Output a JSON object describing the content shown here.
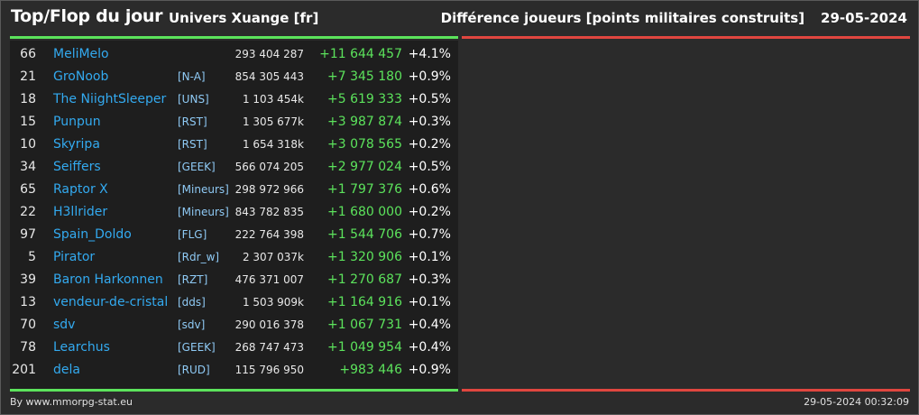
{
  "header": {
    "title": "Top/Flop du jour",
    "universe": "Univers Xuange [fr]",
    "category": "Différence joueurs [points militaires construits]",
    "date": "29-05-2024"
  },
  "rows": [
    {
      "rank": "66",
      "name": "MeliMelo",
      "ally": "",
      "points": "293 404 287",
      "diff": "+11 644 457",
      "pct": "+4.1%"
    },
    {
      "rank": "21",
      "name": "GroNoob",
      "ally": "[N-A]",
      "points": "854 305 443",
      "diff": "+7 345 180",
      "pct": "+0.9%"
    },
    {
      "rank": "18",
      "name": "The NiightSleeper",
      "ally": "[UNS]",
      "points": "1 103 454k",
      "diff": "+5 619 333",
      "pct": "+0.5%"
    },
    {
      "rank": "15",
      "name": "Punpun",
      "ally": "[RST]",
      "points": "1 305 677k",
      "diff": "+3 987 874",
      "pct": "+0.3%"
    },
    {
      "rank": "10",
      "name": "Skyripa",
      "ally": "[RST]",
      "points": "1 654 318k",
      "diff": "+3 078 565",
      "pct": "+0.2%"
    },
    {
      "rank": "34",
      "name": "Seiffers",
      "ally": "[GEEK]",
      "points": "566 074 205",
      "diff": "+2 977 024",
      "pct": "+0.5%"
    },
    {
      "rank": "65",
      "name": "Raptor X",
      "ally": "[Mineurs]",
      "points": "298 972 966",
      "diff": "+1 797 376",
      "pct": "+0.6%"
    },
    {
      "rank": "22",
      "name": "H3llrider",
      "ally": "[Mineurs]",
      "points": "843 782 835",
      "diff": "+1 680 000",
      "pct": "+0.2%"
    },
    {
      "rank": "97",
      "name": "Spain_Doldo",
      "ally": "[FLG]",
      "points": "222 764 398",
      "diff": "+1 544 706",
      "pct": "+0.7%"
    },
    {
      "rank": "5",
      "name": "Pirator",
      "ally": "[Rdr_w]",
      "points": "2 307 037k",
      "diff": "+1 320 906",
      "pct": "+0.1%"
    },
    {
      "rank": "39",
      "name": "Baron Harkonnen",
      "ally": "[RZT]",
      "points": "476 371 007",
      "diff": "+1 270 687",
      "pct": "+0.3%"
    },
    {
      "rank": "13",
      "name": "vendeur-de-cristal",
      "ally": "[dds]",
      "points": "1 503 909k",
      "diff": "+1 164 916",
      "pct": "+0.1%"
    },
    {
      "rank": "70",
      "name": "sdv",
      "ally": "[sdv]",
      "points": "290 016 378",
      "diff": "+1 067 731",
      "pct": "+0.4%"
    },
    {
      "rank": "78",
      "name": "Learchus",
      "ally": "[GEEK]",
      "points": "268 747 473",
      "diff": "+1 049 954",
      "pct": "+0.4%"
    },
    {
      "rank": "201",
      "name": "dela",
      "ally": "[RUD]",
      "points": "115 796 950",
      "diff": "+983 446",
      "pct": "+0.9%"
    }
  ],
  "footer": {
    "credit": "By www.mmorpg-stat.eu",
    "timestamp": "29-05-2024 00:32:09"
  },
  "colors": {
    "top_accent": "#5ce35c",
    "flop_accent": "#e0463f",
    "player_link": "#33aaf0",
    "alliance": "#8fcaf5"
  }
}
